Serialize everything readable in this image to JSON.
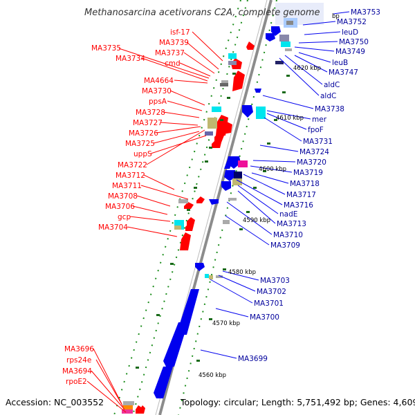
{
  "title": "Methanosarcina acetivorans C2A, complete genome",
  "footer": {
    "accession": "Accession: NC_003552",
    "topology": "Topology: circular; Length: 5,751,492 bp; Genes: 4,609"
  },
  "kbp_marks": [
    "4620 kbp",
    "4610 kbp",
    "4600 kbp",
    "4590 kbp",
    "4580 kbp",
    "4570 kbp",
    "4560 kbp"
  ],
  "partial_mark": "bp",
  "colors": {
    "forward": "#ff0000",
    "reverse": "#0000ee",
    "backbone": "#8c8c8c",
    "ticks": "#1a8c1a"
  },
  "left_labels": [
    "isf-17",
    "MA3739",
    "MA3735",
    "MA3737",
    "MA3734",
    "cmd",
    "MA4664",
    "MA3730",
    "ppsA",
    "MA3728",
    "MA3727",
    "MA3726",
    "MA3725",
    "uppS",
    "MA3722",
    "MA3712",
    "MA3711",
    "MA3708",
    "MA3706",
    "gcp",
    "MA3704",
    "MA3696",
    "rps24e",
    "MA3694",
    "rpoE2"
  ],
  "right_labels": [
    "MA3753",
    "MA3752",
    "leuD",
    "MA3750",
    "MA3749",
    "leuB",
    "MA3747",
    "aldC",
    "aldC",
    "MA3738",
    "mer",
    "fpoF",
    "MA3731",
    "MA3724",
    "MA3720",
    "MA3719",
    "MA3718",
    "MA3717",
    "MA3716",
    "nadE",
    "MA3713",
    "MA3710",
    "MA3709",
    "MA3703",
    "MA3702",
    "MA3701",
    "MA3700",
    "MA3699"
  ]
}
